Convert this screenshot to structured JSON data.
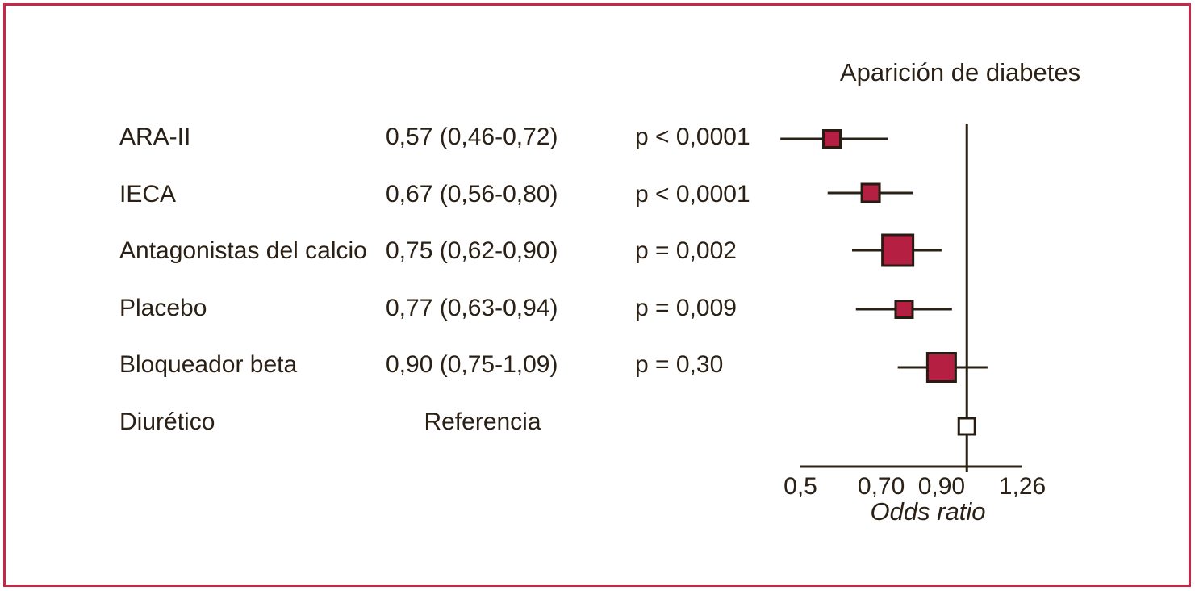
{
  "figure": {
    "title": "Aparición de diabetes",
    "xlabel": "Odds ratio"
  },
  "rows": [
    {
      "label": "ARA-II",
      "value": "0,57 (0,46-0,72)",
      "p": "p < 0,0001"
    },
    {
      "label": "IECA",
      "value": "0,67 (0,56-0,80)",
      "p": "p < 0,0001"
    },
    {
      "label": "Antagonistas del calcio",
      "value": "0,75 (0,62-0,90)",
      "p": "p = 0,002"
    },
    {
      "label": "Placebo",
      "value": "0,77 (0,63-0,94)",
      "p": "p = 0,009"
    },
    {
      "label": "Bloqueador beta",
      "value": "0,90 (0,75-1,09)",
      "p": "p = 0,30"
    },
    {
      "label": "Diurético",
      "value": "Referencia",
      "p": ""
    }
  ],
  "chart_data": {
    "type": "forest",
    "title": "Aparición de diabetes",
    "xlabel": "Odds ratio",
    "x_scale": "log",
    "xlim": [
      0.5,
      1.26
    ],
    "reference_value": 1.0,
    "x_ticks": [
      {
        "value": 0.5,
        "label": "0,5"
      },
      {
        "value": 0.7,
        "label": "0,70"
      },
      {
        "value": 0.9,
        "label": "0,90"
      },
      {
        "value": 1.26,
        "label": "1,26"
      }
    ],
    "series": [
      {
        "name": "ARA-II",
        "or": 0.57,
        "ci_low": 0.46,
        "ci_high": 0.72,
        "p": "p < 0,0001",
        "marker": "filled",
        "marker_size": 21
      },
      {
        "name": "IECA",
        "or": 0.67,
        "ci_low": 0.56,
        "ci_high": 0.8,
        "p": "p < 0,0001",
        "marker": "filled",
        "marker_size": 22
      },
      {
        "name": "Antagonistas del calcio",
        "or": 0.75,
        "ci_low": 0.62,
        "ci_high": 0.9,
        "p": "p = 0,002",
        "marker": "filled",
        "marker_size": 38
      },
      {
        "name": "Placebo",
        "or": 0.77,
        "ci_low": 0.63,
        "ci_high": 0.94,
        "p": "p = 0,009",
        "marker": "filled",
        "marker_size": 21
      },
      {
        "name": "Bloqueador beta",
        "or": 0.9,
        "ci_low": 0.75,
        "ci_high": 1.09,
        "p": "p = 0,30",
        "marker": "filled",
        "marker_size": 35
      },
      {
        "name": "Diurético",
        "or": 1.0,
        "ci_low": null,
        "ci_high": null,
        "p": null,
        "marker": "open",
        "marker_size": 20
      }
    ],
    "colors": {
      "marker_fill": "#b51f42",
      "marker_open_fill": "#ffffff",
      "marker_border": "#261c12",
      "line": "#2a2015",
      "frame_border": "#c5294a"
    }
  }
}
